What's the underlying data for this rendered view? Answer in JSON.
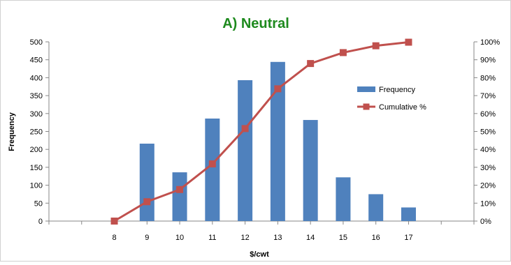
{
  "chart_data": {
    "type": "bar",
    "title": "A) Neutral",
    "xlabel": "$/cwt",
    "ylabel": "Frequency",
    "categories": [
      "8",
      "9",
      "10",
      "11",
      "12",
      "13",
      "14",
      "15",
      "16",
      "17"
    ],
    "series": [
      {
        "name": "Frequency",
        "type": "bar",
        "axis": "left",
        "values": [
          0,
          216,
          136,
          286,
          393,
          444,
          282,
          122,
          75,
          38
        ]
      },
      {
        "name": "Cumulative %",
        "type": "line",
        "axis": "right",
        "values": [
          0,
          10.8,
          17.6,
          31.9,
          51.6,
          73.8,
          87.9,
          94.0,
          97.8,
          99.8
        ]
      }
    ],
    "ylim": [
      0,
      500
    ],
    "yticks": [
      "0",
      "50",
      "100",
      "150",
      "200",
      "250",
      "300",
      "350",
      "400",
      "450",
      "500"
    ],
    "y2lim": [
      0,
      100
    ],
    "y2ticks": [
      "0%",
      "10%",
      "20%",
      "30%",
      "40%",
      "50%",
      "60%",
      "70%",
      "80%",
      "90%",
      "100%"
    ],
    "legend_position": "right",
    "grid": false,
    "colors": {
      "bar": "#4f81bd",
      "line": "#c0504d",
      "title": "#1e8a1e",
      "axis": "#878787"
    }
  }
}
